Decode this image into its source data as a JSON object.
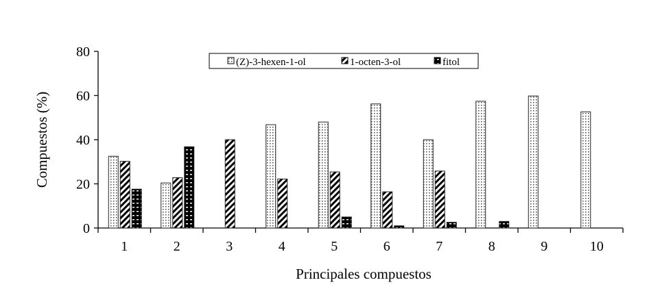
{
  "chart_data": {
    "type": "bar",
    "title": "",
    "xlabel": "Principales compuestos",
    "ylabel": "Compuestos  (%)",
    "ylim": [
      0,
      80
    ],
    "yticks": [
      0,
      20,
      40,
      60,
      80
    ],
    "categories": [
      "1",
      "2",
      "3",
      "4",
      "5",
      "6",
      "7",
      "8",
      "9",
      "10"
    ],
    "legend_position": "top-center",
    "series": [
      {
        "name": "(Z)-3-hexen-1-ol",
        "pattern": "dots",
        "values": [
          32.5,
          20.4,
          null,
          46.8,
          48.0,
          56.2,
          40.0,
          57.4,
          59.8,
          52.6
        ]
      },
      {
        "name": "1-octen-3-ol",
        "pattern": "diagonal",
        "values": [
          30.2,
          22.8,
          40.0,
          22.2,
          25.4,
          16.4,
          25.8,
          null,
          null,
          null
        ]
      },
      {
        "name": "fitol",
        "pattern": "checker",
        "values": [
          17.6,
          36.8,
          null,
          null,
          5.0,
          1.0,
          2.6,
          3.0,
          null,
          null
        ]
      }
    ]
  }
}
